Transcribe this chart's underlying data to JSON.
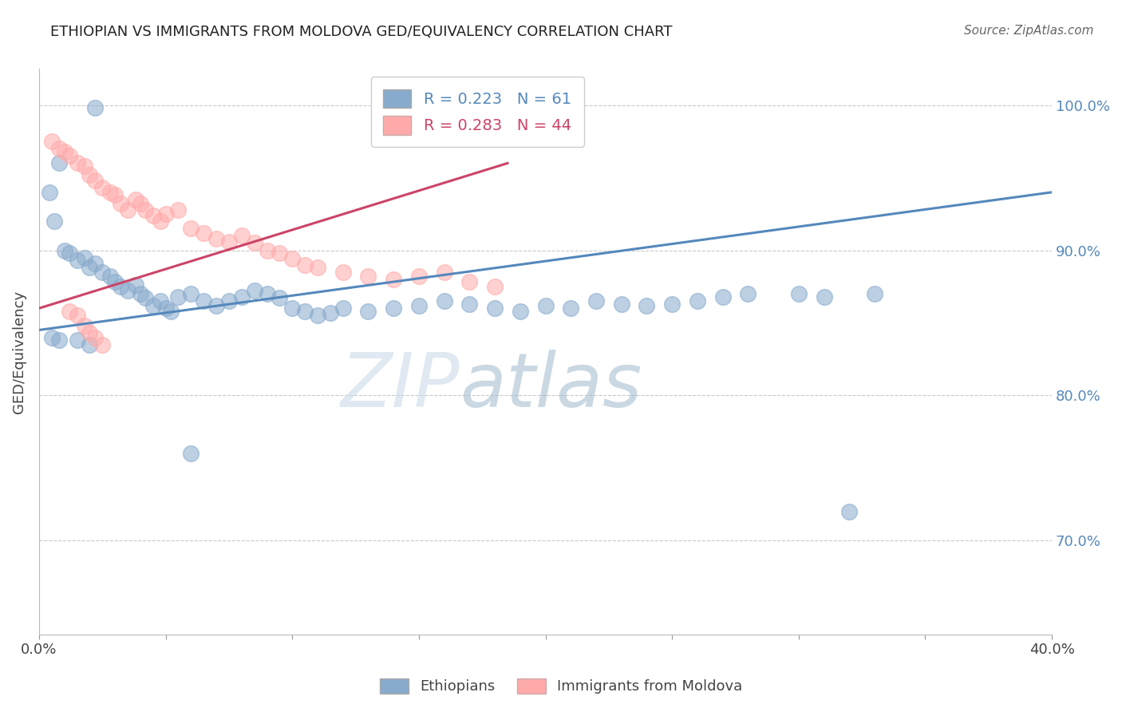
{
  "title": "ETHIOPIAN VS IMMIGRANTS FROM MOLDOVA GED/EQUIVALENCY CORRELATION CHART",
  "source": "Source: ZipAtlas.com",
  "ylabel": "GED/Equivalency",
  "xlim": [
    0.0,
    0.4
  ],
  "ylim": [
    0.635,
    1.025
  ],
  "xtick_positions": [
    0.0,
    0.05,
    0.1,
    0.15,
    0.2,
    0.25,
    0.3,
    0.35,
    0.4
  ],
  "xticklabels": [
    "0.0%",
    "",
    "",
    "",
    "",
    "",
    "",
    "",
    "40.0%"
  ],
  "ytick_positions": [
    0.7,
    0.8,
    0.9,
    1.0
  ],
  "yticklabels": [
    "70.0%",
    "80.0%",
    "90.0%",
    "100.0%"
  ],
  "blue_R": 0.223,
  "blue_N": 61,
  "pink_R": 0.283,
  "pink_N": 44,
  "blue_color": "#88AACC",
  "pink_color": "#FFAAAA",
  "blue_line_color": "#5588BB",
  "pink_line_color": "#CC4466",
  "watermark_zip": "ZIP",
  "watermark_atlas": "atlas",
  "blue_line_x": [
    0.0,
    0.4
  ],
  "blue_line_y": [
    0.845,
    0.94
  ],
  "pink_line_x": [
    0.0,
    0.185
  ],
  "pink_line_y": [
    0.86,
    0.96
  ],
  "blue_scatter_x": [
    0.022,
    0.008,
    0.004,
    0.006,
    0.01,
    0.012,
    0.015,
    0.018,
    0.02,
    0.022,
    0.025,
    0.028,
    0.03,
    0.032,
    0.035,
    0.038,
    0.04,
    0.042,
    0.045,
    0.048,
    0.05,
    0.052,
    0.055,
    0.06,
    0.065,
    0.07,
    0.075,
    0.08,
    0.085,
    0.09,
    0.095,
    0.1,
    0.105,
    0.11,
    0.115,
    0.12,
    0.13,
    0.14,
    0.15,
    0.16,
    0.17,
    0.18,
    0.19,
    0.2,
    0.21,
    0.22,
    0.23,
    0.24,
    0.25,
    0.26,
    0.27,
    0.28,
    0.3,
    0.31,
    0.33,
    0.005,
    0.008,
    0.015,
    0.02,
    0.06,
    0.32
  ],
  "blue_scatter_y": [
    0.998,
    0.96,
    0.94,
    0.92,
    0.9,
    0.898,
    0.893,
    0.895,
    0.888,
    0.891,
    0.885,
    0.882,
    0.878,
    0.875,
    0.872,
    0.876,
    0.87,
    0.867,
    0.862,
    0.865,
    0.86,
    0.858,
    0.868,
    0.87,
    0.865,
    0.862,
    0.865,
    0.868,
    0.872,
    0.87,
    0.867,
    0.86,
    0.858,
    0.855,
    0.857,
    0.86,
    0.858,
    0.86,
    0.862,
    0.865,
    0.863,
    0.86,
    0.858,
    0.862,
    0.86,
    0.865,
    0.863,
    0.862,
    0.863,
    0.865,
    0.868,
    0.87,
    0.87,
    0.868,
    0.87,
    0.84,
    0.838,
    0.838,
    0.835,
    0.76,
    0.72
  ],
  "pink_scatter_x": [
    0.005,
    0.008,
    0.01,
    0.012,
    0.015,
    0.018,
    0.02,
    0.022,
    0.025,
    0.028,
    0.03,
    0.032,
    0.035,
    0.038,
    0.04,
    0.042,
    0.045,
    0.048,
    0.05,
    0.055,
    0.06,
    0.065,
    0.07,
    0.075,
    0.08,
    0.085,
    0.09,
    0.095,
    0.1,
    0.105,
    0.11,
    0.12,
    0.13,
    0.14,
    0.15,
    0.16,
    0.17,
    0.18,
    0.012,
    0.015,
    0.018,
    0.02,
    0.022,
    0.025
  ],
  "pink_scatter_y": [
    0.975,
    0.97,
    0.968,
    0.965,
    0.96,
    0.958,
    0.952,
    0.948,
    0.943,
    0.94,
    0.938,
    0.932,
    0.928,
    0.935,
    0.932,
    0.928,
    0.924,
    0.92,
    0.925,
    0.928,
    0.915,
    0.912,
    0.908,
    0.906,
    0.91,
    0.905,
    0.9,
    0.898,
    0.894,
    0.89,
    0.888,
    0.885,
    0.882,
    0.88,
    0.882,
    0.885,
    0.878,
    0.875,
    0.858,
    0.855,
    0.848,
    0.843,
    0.84,
    0.835
  ]
}
